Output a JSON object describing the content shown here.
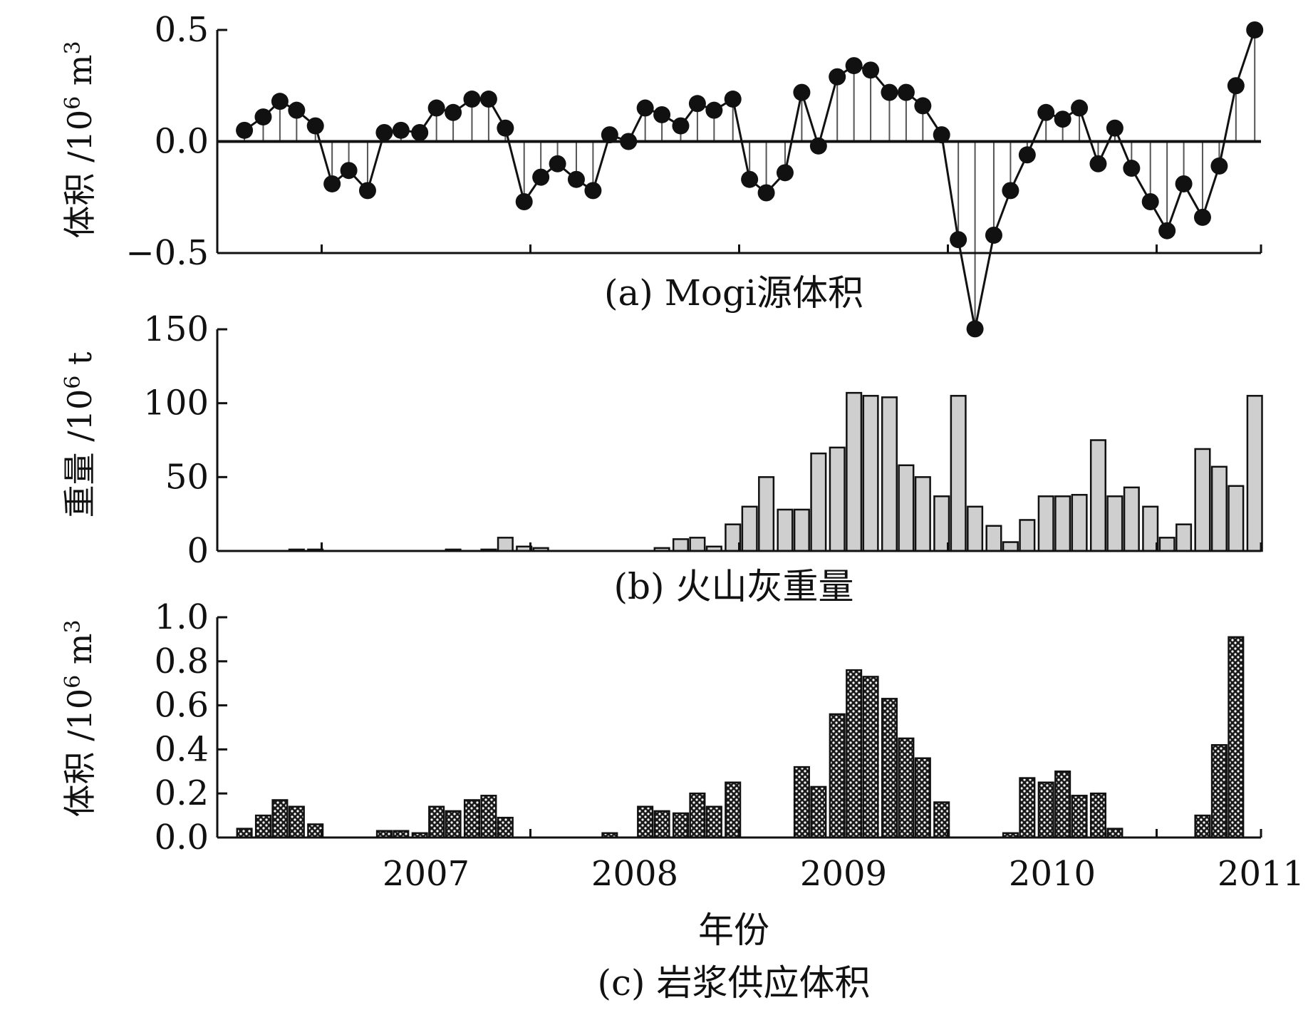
{
  "chart_data": [
    {
      "type": "line",
      "caption": "(a) Mogi源体积",
      "ylabel": "体积 /10",
      "ylabel_sup_exp": "6",
      "ylabel_unit": " m",
      "ylabel_unit_sup": "3",
      "ylim": [
        -0.5,
        0.5
      ],
      "yticks": [
        "0.5",
        "0.0",
        "−0.5"
      ],
      "ytick_values": [
        0.5,
        0.0,
        -0.5
      ],
      "x_range": [
        2006.4,
        2011.4
      ],
      "x": [
        2006.53,
        2006.62,
        2006.7,
        2006.78,
        2006.87,
        2006.95,
        2007.03,
        2007.12,
        2007.2,
        2007.28,
        2007.37,
        2007.45,
        2007.53,
        2007.62,
        2007.7,
        2007.78,
        2007.87,
        2007.95,
        2008.03,
        2008.12,
        2008.2,
        2008.28,
        2008.37,
        2008.45,
        2008.53,
        2008.62,
        2008.7,
        2008.78,
        2008.87,
        2008.95,
        2009.03,
        2009.12,
        2009.2,
        2009.28,
        2009.37,
        2009.45,
        2009.53,
        2009.62,
        2009.7,
        2009.78,
        2009.87,
        2009.95,
        2010.03,
        2010.12,
        2010.2,
        2010.28,
        2010.37,
        2010.45,
        2010.53,
        2010.62,
        2010.7,
        2010.78,
        2010.87,
        2010.95,
        2011.03,
        2011.12,
        2011.2,
        2011.28,
        2011.37
      ],
      "values": [
        0.05,
        0.11,
        0.18,
        0.14,
        0.07,
        -0.19,
        -0.13,
        -0.22,
        0.04,
        0.05,
        0.04,
        0.15,
        0.13,
        0.19,
        0.19,
        0.06,
        -0.27,
        -0.16,
        -0.1,
        -0.17,
        -0.22,
        0.03,
        0.0,
        0.15,
        0.12,
        0.07,
        0.17,
        0.14,
        0.19,
        -0.17,
        -0.23,
        -0.14,
        0.22,
        -0.02,
        0.29,
        0.34,
        0.32,
        0.22,
        0.22,
        0.16,
        0.03,
        -0.44,
        -0.84,
        -0.42,
        -0.22,
        -0.06,
        0.13,
        0.1,
        0.15,
        -0.1,
        0.06,
        -0.12,
        -0.27,
        -0.4,
        -0.19,
        -0.34,
        -0.11,
        0.25,
        0.5
      ]
    },
    {
      "type": "bar",
      "caption": "(b) 火山灰重量",
      "ylabel": "重量 /10",
      "ylabel_sup_exp": "6",
      "ylabel_unit": " t",
      "ylim": [
        0,
        150
      ],
      "yticks": [
        "150",
        "100",
        "50",
        "0"
      ],
      "ytick_values": [
        150,
        100,
        50,
        0
      ],
      "x_range": [
        2006.4,
        2011.4
      ],
      "x": [
        2006.53,
        2006.62,
        2006.7,
        2006.78,
        2006.87,
        2006.95,
        2007.03,
        2007.12,
        2007.2,
        2007.28,
        2007.37,
        2007.45,
        2007.53,
        2007.62,
        2007.7,
        2007.78,
        2007.87,
        2007.95,
        2008.03,
        2008.12,
        2008.2,
        2008.28,
        2008.37,
        2008.45,
        2008.53,
        2008.62,
        2008.7,
        2008.78,
        2008.87,
        2008.95,
        2009.03,
        2009.12,
        2009.2,
        2009.28,
        2009.37,
        2009.45,
        2009.53,
        2009.62,
        2009.7,
        2009.78,
        2009.87,
        2009.95,
        2010.03,
        2010.12,
        2010.2,
        2010.28,
        2010.37,
        2010.45,
        2010.53,
        2010.62,
        2010.7,
        2010.78,
        2010.87,
        2010.95,
        2011.03,
        2011.12,
        2011.2,
        2011.28,
        2011.37
      ],
      "values": [
        0,
        0,
        0,
        1,
        1,
        0,
        0,
        0,
        0,
        0,
        0,
        0,
        1,
        0,
        1,
        9,
        3,
        2,
        0,
        0,
        0,
        0,
        0,
        0,
        2,
        8,
        9,
        3,
        18,
        30,
        50,
        28,
        28,
        66,
        70,
        107,
        105,
        104,
        58,
        50,
        37,
        105,
        30,
        17,
        6,
        21,
        37,
        37,
        38,
        75,
        37,
        43,
        30,
        9,
        18,
        69,
        57,
        44,
        105
      ]
    },
    {
      "type": "bar",
      "caption": "(c) 岩浆供应体积",
      "ylabel": "体积 /10",
      "ylabel_sup_exp": "6",
      "ylabel_unit": " m",
      "ylabel_unit_sup": "3",
      "xlabel": "年份",
      "ylim": [
        0,
        1.0
      ],
      "yticks": [
        "1.0",
        "0.8",
        "0.6",
        "0.4",
        "0.2",
        "0.0"
      ],
      "ytick_values": [
        1.0,
        0.8,
        0.6,
        0.4,
        0.2,
        0.0
      ],
      "x_range": [
        2006.4,
        2011.4
      ],
      "xtick_labels": [
        "2007",
        "2008",
        "2009",
        "2010",
        "2011"
      ],
      "xtick_values": [
        2006.9,
        2007.9,
        2008.9,
        2009.9,
        2010.9
      ],
      "x": [
        2006.53,
        2006.62,
        2006.7,
        2006.78,
        2006.87,
        2006.95,
        2007.03,
        2007.12,
        2007.2,
        2007.28,
        2007.37,
        2007.45,
        2007.53,
        2007.62,
        2007.7,
        2007.78,
        2007.87,
        2007.95,
        2008.03,
        2008.12,
        2008.2,
        2008.28,
        2008.37,
        2008.45,
        2008.53,
        2008.62,
        2008.7,
        2008.78,
        2008.87,
        2008.95,
        2009.03,
        2009.12,
        2009.2,
        2009.28,
        2009.37,
        2009.45,
        2009.53,
        2009.62,
        2009.7,
        2009.78,
        2009.87,
        2009.95,
        2010.03,
        2010.12,
        2010.2,
        2010.28,
        2010.37,
        2010.45,
        2010.53,
        2010.62,
        2010.7,
        2010.78,
        2010.87,
        2010.95,
        2011.03,
        2011.12,
        2011.2,
        2011.28,
        2011.37
      ],
      "values": [
        0.04,
        0.1,
        0.17,
        0.14,
        0.06,
        0,
        0,
        0,
        0.03,
        0.03,
        0.02,
        0.14,
        0.12,
        0.17,
        0.19,
        0.09,
        0,
        0,
        0,
        0,
        0,
        0.02,
        0,
        0.14,
        0.12,
        0.11,
        0.2,
        0.14,
        0.25,
        0,
        0,
        0,
        0.32,
        0.23,
        0.56,
        0.76,
        0.73,
        0.63,
        0.45,
        0.36,
        0.16,
        0,
        0,
        0,
        0.02,
        0.27,
        0.25,
        0.3,
        0.19,
        0.2,
        0.04,
        0,
        0,
        0,
        0,
        0.1,
        0.42,
        0.91,
        0
      ]
    }
  ]
}
